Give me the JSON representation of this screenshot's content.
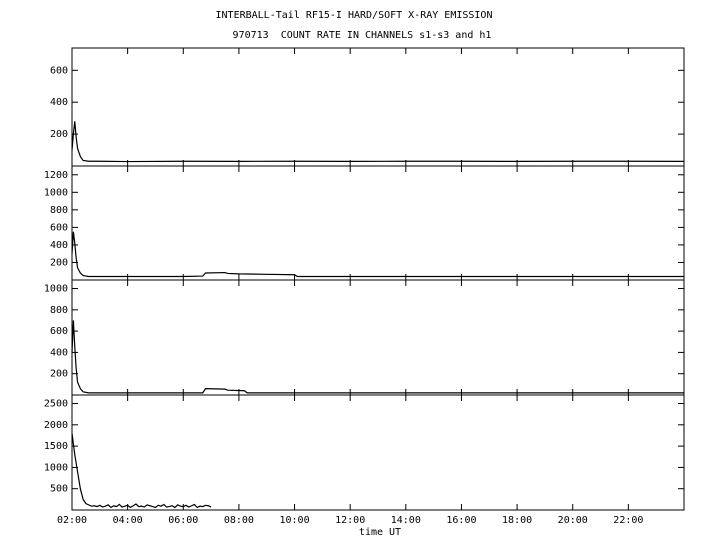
{
  "header": {
    "title": "INTERBALL-Tail RF15-I HARD/SOFT X-RAY EMISSION",
    "subtitle": "970713  COUNT RATE IN CHANNELS s1-s3 and h1"
  },
  "chart_data": [
    {
      "type": "line",
      "color": "#000000",
      "xlim": [
        2,
        24
      ],
      "ylim": [
        0,
        740
      ],
      "yticks": [
        200,
        400,
        600
      ],
      "x": [
        2.0,
        2.05,
        2.1,
        2.15,
        2.2,
        2.3,
        2.4,
        2.6,
        3,
        4,
        6,
        8,
        10,
        12,
        14,
        16,
        18,
        20,
        22,
        24
      ],
      "values": [
        100,
        200,
        280,
        180,
        110,
        60,
        35,
        30,
        30,
        28,
        30,
        29,
        30,
        29,
        30,
        30,
        29,
        30,
        30,
        29
      ]
    },
    {
      "type": "line",
      "color": "#000000",
      "xlim": [
        2,
        24
      ],
      "ylim": [
        0,
        1300
      ],
      "yticks": [
        200,
        400,
        600,
        800,
        1000,
        1200
      ],
      "x": [
        2.0,
        2.05,
        2.1,
        2.15,
        2.2,
        2.3,
        2.4,
        2.6,
        3,
        4,
        6,
        6.7,
        6.8,
        7.5,
        7.6,
        8,
        9,
        10,
        10.1,
        12,
        16,
        20,
        24
      ],
      "values": [
        300,
        550,
        420,
        250,
        140,
        80,
        50,
        40,
        40,
        40,
        40,
        45,
        80,
        85,
        75,
        70,
        65,
        60,
        40,
        40,
        40,
        40,
        40
      ]
    },
    {
      "type": "line",
      "color": "#000000",
      "xlim": [
        2,
        24
      ],
      "ylim": [
        0,
        1080
      ],
      "yticks": [
        200,
        400,
        600,
        800,
        1000
      ],
      "x": [
        2.0,
        2.05,
        2.1,
        2.15,
        2.2,
        2.3,
        2.4,
        2.6,
        3,
        4,
        6,
        6.7,
        6.8,
        7.5,
        7.6,
        8.2,
        8.3,
        12,
        16,
        20,
        24
      ],
      "values": [
        400,
        700,
        450,
        250,
        120,
        60,
        30,
        20,
        20,
        20,
        20,
        20,
        60,
        55,
        45,
        40,
        20,
        20,
        20,
        20,
        20
      ]
    },
    {
      "type": "line",
      "color": "#000000",
      "xlim": [
        2,
        24
      ],
      "ylim": [
        0,
        2700
      ],
      "yticks": [
        500,
        1000,
        1500,
        2000,
        2500
      ],
      "xticks": [
        {
          "value": 2,
          "label": "02:00"
        },
        {
          "value": 4,
          "label": "04:00"
        },
        {
          "value": 6,
          "label": "06:00"
        },
        {
          "value": 8,
          "label": "08:00"
        },
        {
          "value": 10,
          "label": "10:00"
        },
        {
          "value": 12,
          "label": "12:00"
        },
        {
          "value": 14,
          "label": "14:00"
        },
        {
          "value": 16,
          "label": "16:00"
        },
        {
          "value": 18,
          "label": "18:00"
        },
        {
          "value": 20,
          "label": "20:00"
        },
        {
          "value": 22,
          "label": "22:00"
        }
      ],
      "x_label": "time UT",
      "x": [
        2.0,
        2.1,
        2.2,
        2.3,
        2.4,
        2.5,
        2.6,
        2.7,
        2.8,
        2.9,
        3.0,
        3.1,
        3.2,
        3.3,
        3.4,
        3.5,
        3.6,
        3.7,
        3.8,
        3.9,
        4.0,
        4.1,
        4.2,
        4.3,
        4.4,
        4.5,
        4.6,
        4.7,
        4.8,
        4.9,
        5.0,
        5.1,
        5.2,
        5.3,
        5.4,
        5.5,
        5.6,
        5.7,
        5.8,
        5.9,
        6.0,
        6.1,
        6.2,
        6.3,
        6.4,
        6.5,
        6.6,
        6.7,
        6.8,
        6.9,
        7.0
      ],
      "values": [
        1800,
        1300,
        900,
        500,
        250,
        150,
        120,
        90,
        100,
        80,
        110,
        70,
        90,
        120,
        60,
        100,
        80,
        130,
        70,
        90,
        110,
        60,
        100,
        140,
        80,
        90,
        70,
        120,
        100,
        80,
        60,
        110,
        90,
        130,
        70,
        80,
        100,
        60,
        120,
        90,
        80,
        110,
        70,
        100,
        130,
        60,
        90,
        80,
        110,
        100,
        70
      ]
    }
  ]
}
